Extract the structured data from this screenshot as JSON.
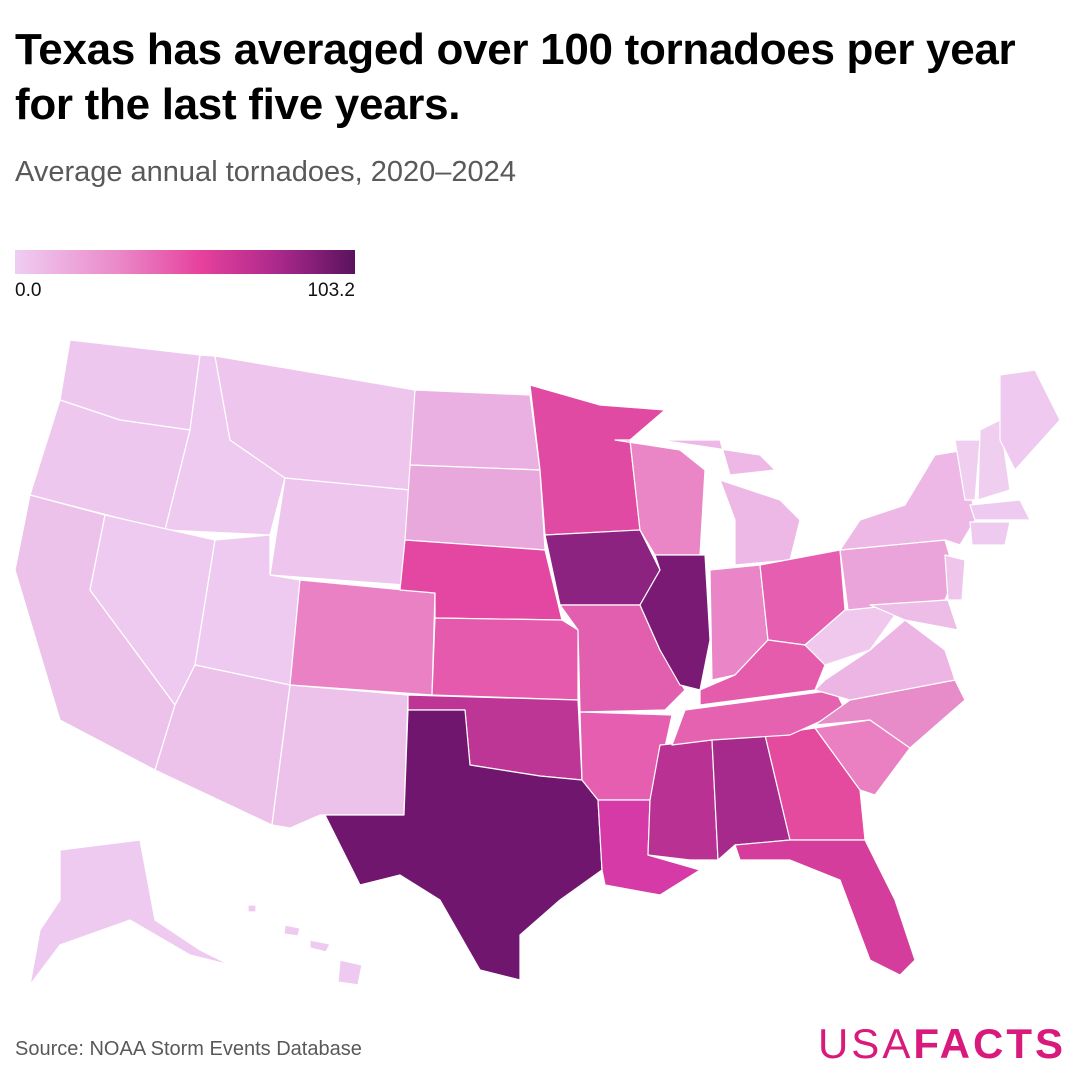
{
  "title": "Texas has averaged over 100 tornadoes per year for the last five years.",
  "subtitle": "Average annual tornadoes, 2020–2024",
  "legend": {
    "min_label": "0.0",
    "max_label": "103.2",
    "colors": [
      "#efcdf2",
      "#ea8ac9",
      "#e6409c",
      "#a9288b",
      "#5a125e"
    ]
  },
  "source": "Source: NOAA Storm Events Database",
  "logo": {
    "part1": "USA",
    "part2": "FACTS",
    "color": "#d91a7d"
  }
}
